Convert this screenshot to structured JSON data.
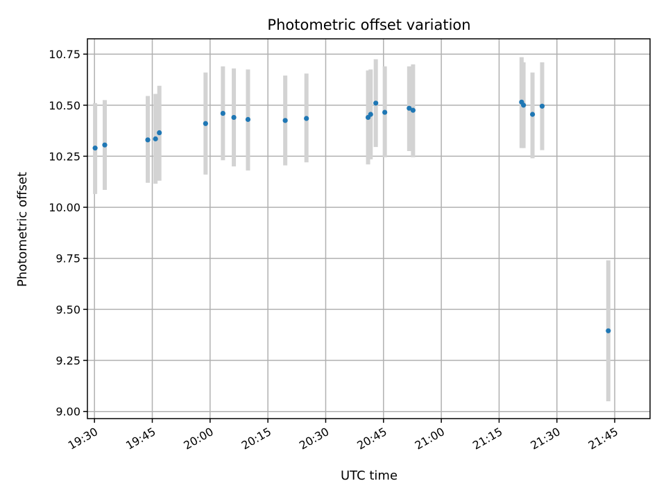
{
  "chart_data": {
    "type": "scatter",
    "title": "Photometric offset variation",
    "xlabel": "UTC time",
    "ylabel": "Photometric offset",
    "x_ticks": [
      "19:30",
      "19:45",
      "20:00",
      "20:15",
      "20:30",
      "20:45",
      "21:00",
      "21:15",
      "21:30",
      "21:45"
    ],
    "y_ticks": [
      "9.00",
      "9.25",
      "9.50",
      "9.75",
      "10.00",
      "10.25",
      "10.50",
      "10.75"
    ],
    "xlim": [
      "19:28:10",
      "21:54:10"
    ],
    "ylim": [
      8.965,
      10.825
    ],
    "grid": true,
    "colors": {
      "point": "#1f77b4",
      "errorbar": "#d3d3d3",
      "grid": "#b0b0b0"
    },
    "series": [
      {
        "x": [
          "19:30:10",
          "19:32:40",
          "19:43:50",
          "19:45:50",
          "19:46:50",
          "19:58:50",
          "20:03:20",
          "20:06:10",
          "20:09:50",
          "20:19:30",
          "20:25:00",
          "20:41:00",
          "20:41:40",
          "20:43:00",
          "20:45:20",
          "20:51:40",
          "20:52:40",
          "21:20:50",
          "21:21:20",
          "21:23:40",
          "21:26:10",
          "21:43:20"
        ],
        "y": [
          10.29,
          10.305,
          10.33,
          10.335,
          10.365,
          10.41,
          10.46,
          10.44,
          10.43,
          10.425,
          10.435,
          10.44,
          10.455,
          10.51,
          10.465,
          10.485,
          10.475,
          10.515,
          10.5,
          10.455,
          10.495,
          9.395
        ],
        "err_low": [
          10.065,
          10.085,
          10.12,
          10.115,
          10.13,
          10.16,
          10.23,
          10.2,
          10.18,
          10.205,
          10.22,
          10.21,
          10.235,
          10.295,
          10.245,
          10.275,
          10.245,
          10.29,
          10.29,
          10.24,
          10.28,
          9.05
        ],
        "err_high": [
          10.51,
          10.525,
          10.545,
          10.555,
          10.595,
          10.66,
          10.69,
          10.68,
          10.675,
          10.645,
          10.655,
          10.67,
          10.675,
          10.725,
          10.69,
          10.69,
          10.7,
          10.735,
          10.71,
          10.66,
          10.71,
          9.74
        ]
      }
    ]
  }
}
